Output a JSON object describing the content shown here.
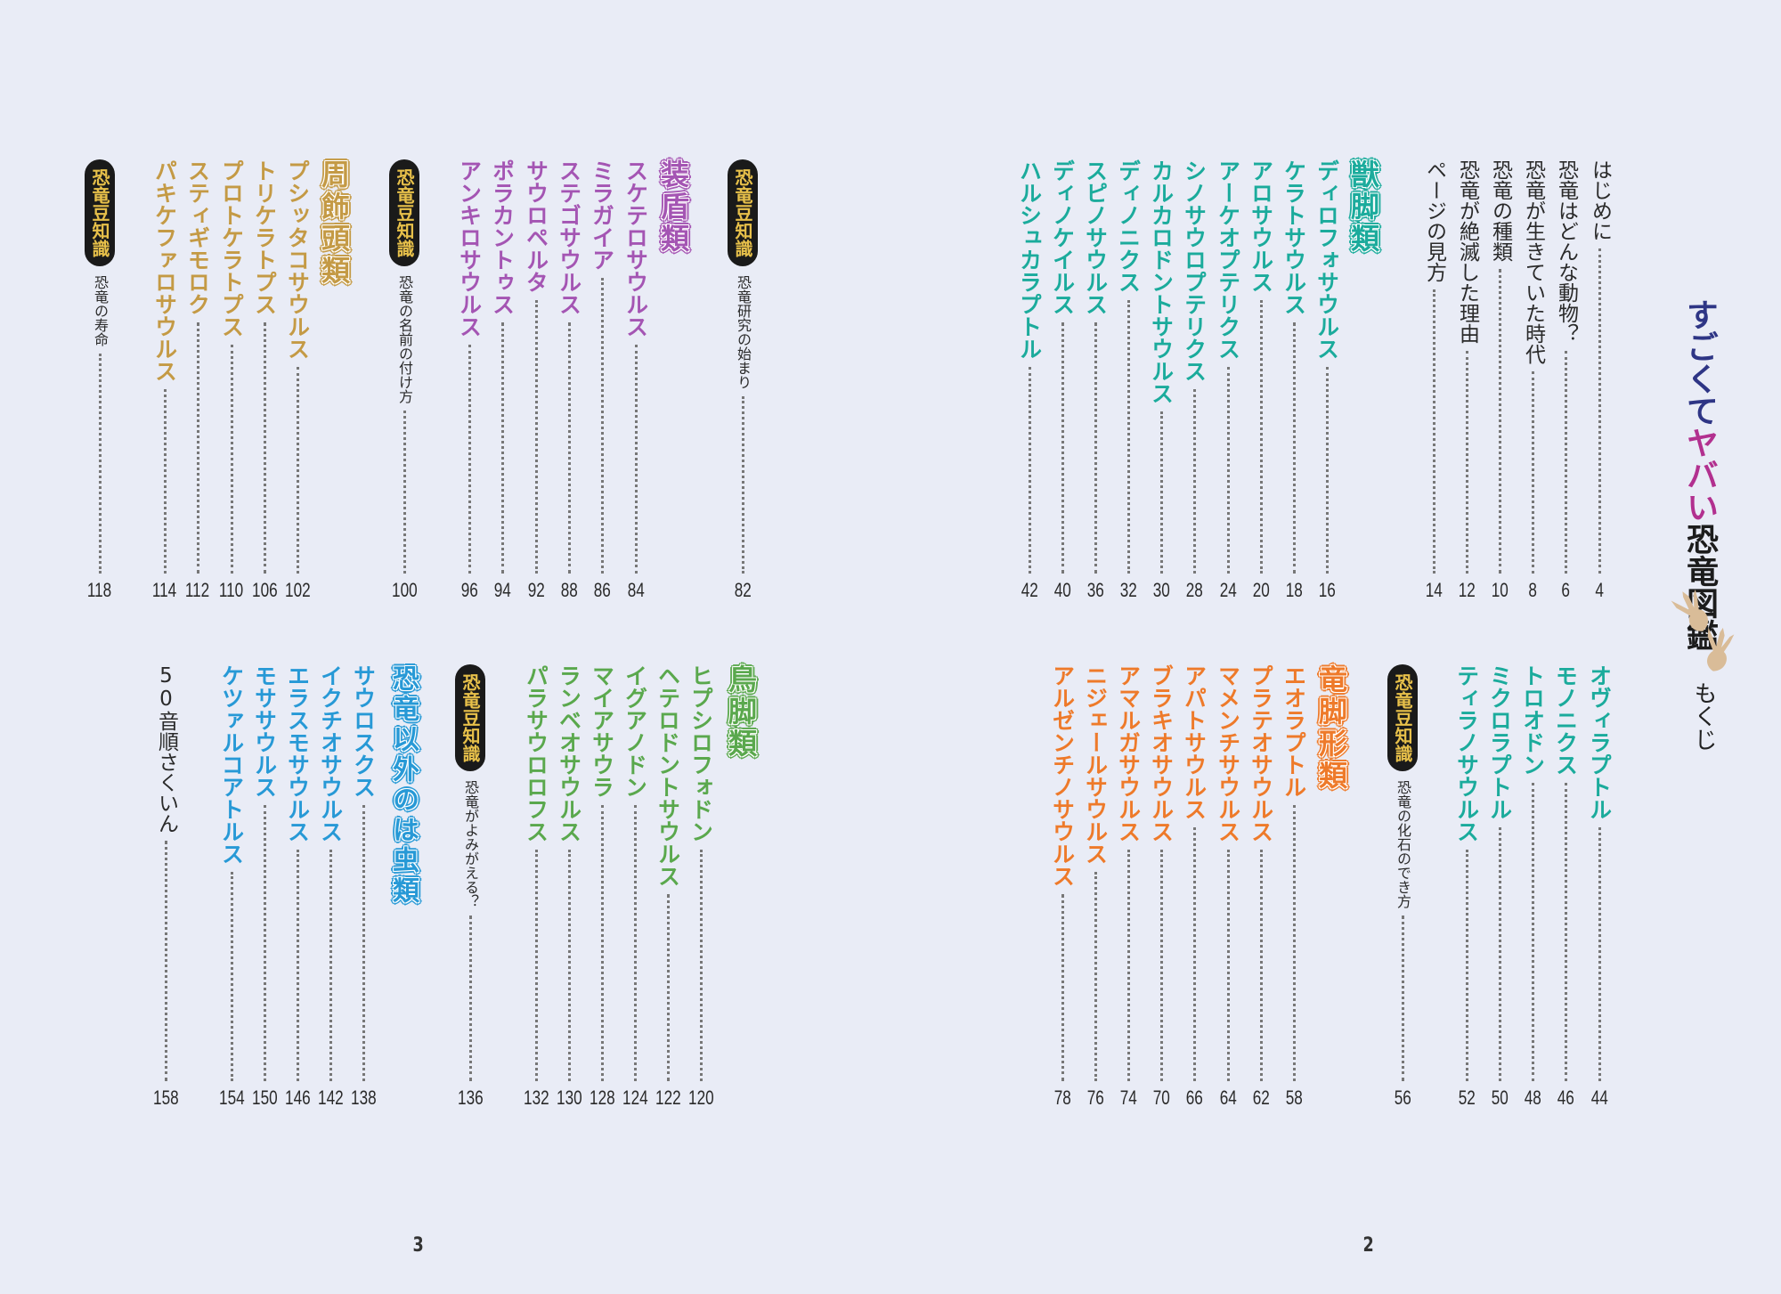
{
  "book_title": {
    "part1": "すごくて",
    "part2": "ヤバい",
    "part3": "恐竜図鑑"
  },
  "section_label": "もくじ",
  "page_numbers": {
    "left": "3",
    "right": "2"
  },
  "colors": {
    "theropod": "#1bab9c",
    "thyreophora": "#a455b3",
    "marginocephalia": "#c49a45",
    "sauropodomorph": "#ee7a2a",
    "ornithopod": "#5aa84d",
    "non_dinosaur": "#2799d6",
    "badge_bg": "#1a1a1a",
    "badge_text": "#e7c04a"
  },
  "icons": {
    "hands": "dinosaur-footprint-icon"
  },
  "toc": {
    "right_top": [
      {
        "type": "plain",
        "label": "はじめに",
        "page": "4"
      },
      {
        "type": "plain",
        "label": "恐竜はどんな動物？",
        "page": "6"
      },
      {
        "type": "plain",
        "label": "恐竜が生きていた時代",
        "page": "8"
      },
      {
        "type": "plain",
        "label": "恐竜の種類",
        "page": "10"
      },
      {
        "type": "plain",
        "label": "恐竜が絶滅した理由",
        "page": "12"
      },
      {
        "type": "plain",
        "label": "ページの見方",
        "page": "14"
      },
      {
        "type": "header",
        "label": "獣脚類",
        "color": "theropod"
      },
      {
        "type": "entry",
        "label": "ディロフォサウルス",
        "page": "16",
        "color": "theropod"
      },
      {
        "type": "entry",
        "label": "ケラトサウルス",
        "page": "18",
        "color": "theropod"
      },
      {
        "type": "entry",
        "label": "アロサウルス",
        "page": "20",
        "color": "theropod"
      },
      {
        "type": "entry",
        "label": "アーケオプテリクス",
        "page": "24",
        "color": "theropod"
      },
      {
        "type": "entry",
        "label": "シノサウロプテリクス",
        "page": "28",
        "color": "theropod"
      },
      {
        "type": "entry",
        "label": "カルカロドントサウルス",
        "page": "30",
        "color": "theropod"
      },
      {
        "type": "entry",
        "label": "ディノニクス",
        "page": "32",
        "color": "theropod"
      },
      {
        "type": "entry",
        "label": "スピノサウルス",
        "page": "36",
        "color": "theropod"
      },
      {
        "type": "entry",
        "label": "ディノケイルス",
        "page": "40",
        "color": "theropod"
      },
      {
        "type": "entry",
        "label": "ハルシュカラプトル",
        "page": "42",
        "color": "theropod"
      }
    ],
    "right_bottom": [
      {
        "type": "entry",
        "label": "オヴィラプトル",
        "page": "44",
        "color": "theropod"
      },
      {
        "type": "entry",
        "label": "モノニクス",
        "page": "46",
        "color": "theropod"
      },
      {
        "type": "entry",
        "label": "トロオドン",
        "page": "48",
        "color": "theropod"
      },
      {
        "type": "entry",
        "label": "ミクロラプトル",
        "page": "50",
        "color": "theropod"
      },
      {
        "type": "entry",
        "label": "ティラノサウルス",
        "page": "52",
        "color": "theropod"
      },
      {
        "type": "trivia",
        "badge": "恐竜豆知識",
        "label": "恐竜の化石のでき方",
        "page": "56"
      },
      {
        "type": "header",
        "label": "竜脚形類",
        "color": "sauropodomorph"
      },
      {
        "type": "entry",
        "label": "エオラプトル",
        "page": "58",
        "color": "sauropodomorph"
      },
      {
        "type": "entry",
        "label": "プラテオサウルス",
        "page": "62",
        "color": "sauropodomorph"
      },
      {
        "type": "entry",
        "label": "マメンチサウルス",
        "page": "64",
        "color": "sauropodomorph"
      },
      {
        "type": "entry",
        "label": "アパトサウルス",
        "page": "66",
        "color": "sauropodomorph"
      },
      {
        "type": "entry",
        "label": "ブラキオサウルス",
        "page": "70",
        "color": "sauropodomorph"
      },
      {
        "type": "entry",
        "label": "アマルガサウルス",
        "page": "74",
        "color": "sauropodomorph"
      },
      {
        "type": "entry",
        "label": "ニジェールサウルス",
        "page": "76",
        "color": "sauropodomorph"
      },
      {
        "type": "entry",
        "label": "アルゼンチノサウルス",
        "page": "78",
        "color": "sauropodomorph"
      }
    ],
    "left_top": [
      {
        "type": "trivia",
        "badge": "恐竜豆知識",
        "label": "恐竜研究の始まり",
        "page": "82"
      },
      {
        "type": "header",
        "label": "装盾類",
        "color": "thyreophora"
      },
      {
        "type": "entry",
        "label": "スケテロサウルス",
        "page": "84",
        "color": "thyreophora"
      },
      {
        "type": "entry",
        "label": "ミラガイア",
        "page": "86",
        "color": "thyreophora"
      },
      {
        "type": "entry",
        "label": "ステゴサウルス",
        "page": "88",
        "color": "thyreophora"
      },
      {
        "type": "entry",
        "label": "サウロペルタ",
        "page": "92",
        "color": "thyreophora"
      },
      {
        "type": "entry",
        "label": "ポラカントゥス",
        "page": "94",
        "color": "thyreophora"
      },
      {
        "type": "entry",
        "label": "アンキロサウルス",
        "page": "96",
        "color": "thyreophora"
      },
      {
        "type": "trivia",
        "badge": "恐竜豆知識",
        "label": "恐竜の名前の付け方",
        "page": "100"
      },
      {
        "type": "header",
        "label": "周飾頭類",
        "color": "marginocephalia"
      },
      {
        "type": "entry",
        "label": "プシッタコサウルス",
        "page": "102",
        "color": "marginocephalia"
      },
      {
        "type": "entry",
        "label": "トリケラトプス",
        "page": "106",
        "color": "marginocephalia"
      },
      {
        "type": "entry",
        "label": "プロトケラトプス",
        "page": "110",
        "color": "marginocephalia"
      },
      {
        "type": "entry",
        "label": "スティギモロク",
        "page": "112",
        "color": "marginocephalia"
      },
      {
        "type": "entry",
        "label": "パキケファロサウルス",
        "page": "114",
        "color": "marginocephalia"
      },
      {
        "type": "trivia",
        "badge": "恐竜豆知識",
        "label": "恐竜の寿命",
        "page": "118"
      }
    ],
    "left_bottom": [
      {
        "type": "header",
        "label": "鳥脚類",
        "color": "ornithopod"
      },
      {
        "type": "entry",
        "label": "ヒプシロフォドン",
        "page": "120",
        "color": "ornithopod"
      },
      {
        "type": "entry",
        "label": "ヘテロドントサウルス",
        "page": "122",
        "color": "ornithopod"
      },
      {
        "type": "entry",
        "label": "イグアノドン",
        "page": "124",
        "color": "ornithopod"
      },
      {
        "type": "entry",
        "label": "マイアサウラ",
        "page": "128",
        "color": "ornithopod"
      },
      {
        "type": "entry",
        "label": "ランベオサウルス",
        "page": "130",
        "color": "ornithopod"
      },
      {
        "type": "entry",
        "label": "パラサウロロフス",
        "page": "132",
        "color": "ornithopod"
      },
      {
        "type": "trivia",
        "badge": "恐竜豆知識",
        "label": "恐竜がよみがえる？",
        "page": "136"
      },
      {
        "type": "header",
        "label": "恐竜以外のは虫類",
        "color": "non_dinosaur"
      },
      {
        "type": "entry",
        "label": "サウロスクス",
        "page": "138",
        "color": "non_dinosaur"
      },
      {
        "type": "entry",
        "label": "イクチオサウルス",
        "page": "142",
        "color": "non_dinosaur"
      },
      {
        "type": "entry",
        "label": "エラスモサウルス",
        "page": "146",
        "color": "non_dinosaur"
      },
      {
        "type": "entry",
        "label": "モササウルス",
        "page": "150",
        "color": "non_dinosaur"
      },
      {
        "type": "entry",
        "label": "ケツァルコアトルス",
        "page": "154",
        "color": "non_dinosaur"
      },
      {
        "type": "plain",
        "label": "50音順さくいん",
        "page": "158"
      }
    ]
  }
}
